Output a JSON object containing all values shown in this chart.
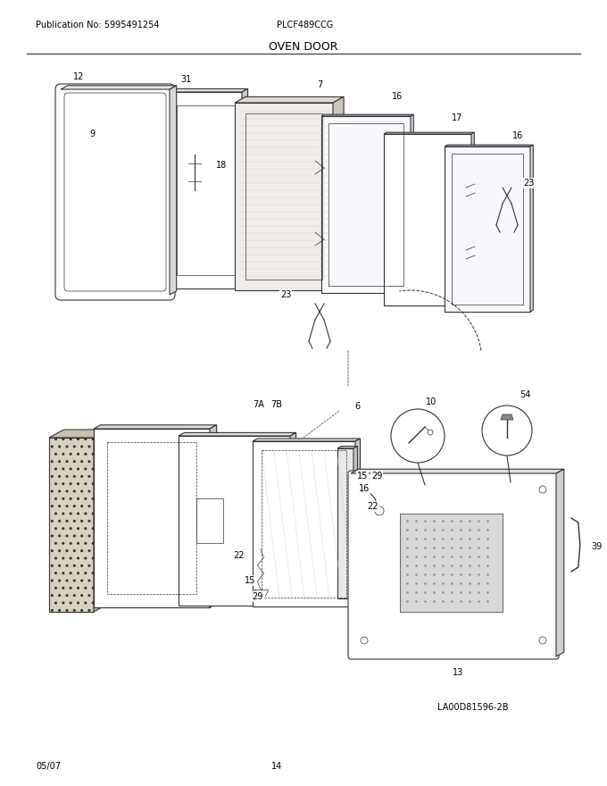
{
  "page_title": "OVEN DOOR",
  "pub_no_label": "Publication No: 5995491254",
  "model_label": "PLCF489CCG",
  "diagram_label": "LA00D81596-2B",
  "date_label": "05/07",
  "page_num_label": "14",
  "bg_color": "#ffffff",
  "line_color": "#333333",
  "text_color": "#000000",
  "title_fontsize": 9,
  "header_fontsize": 7,
  "label_fontsize": 7,
  "footer_fontsize": 7
}
